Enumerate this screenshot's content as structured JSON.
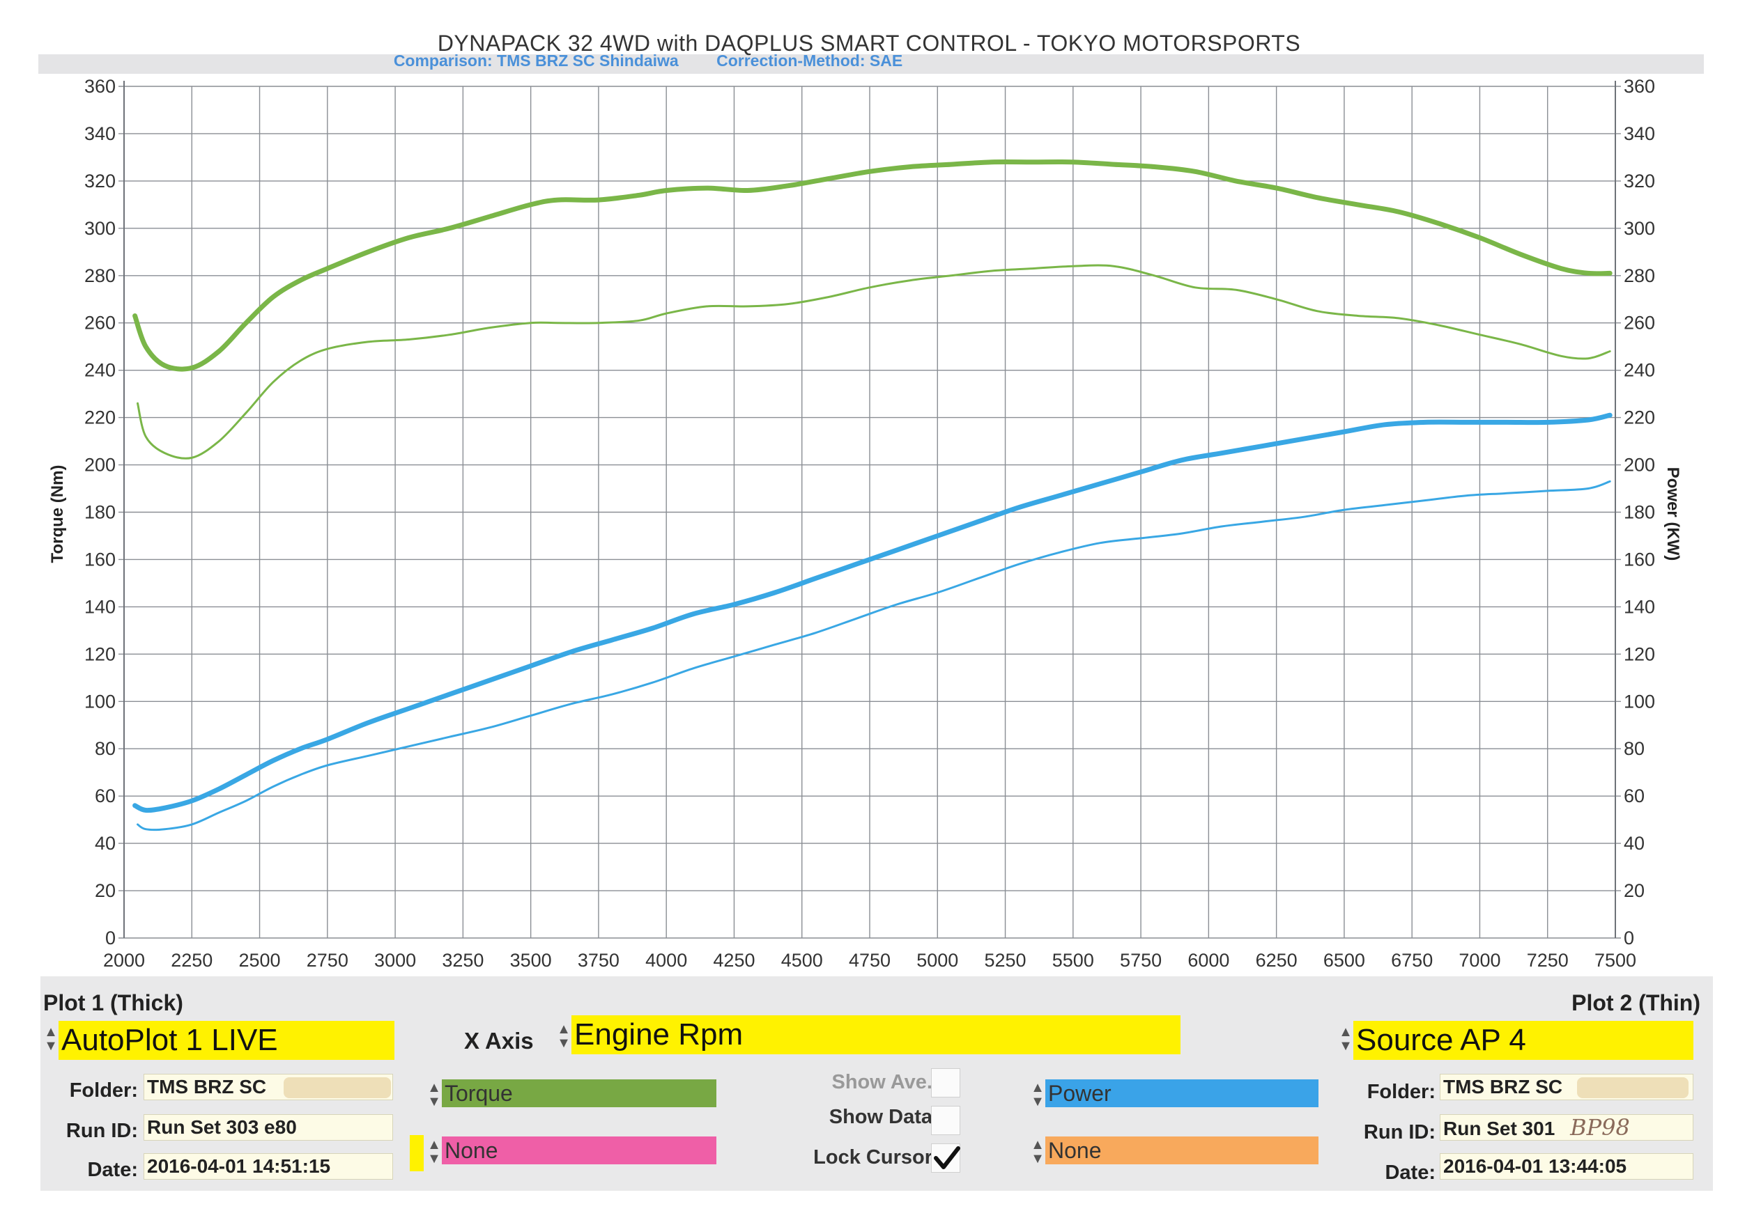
{
  "chart_data": {
    "type": "line",
    "title": "DYNAPACK 32 4WD with DAQPLUS SMART CONTROL - TOKYO MOTORSPORTS",
    "subtitle_comparison": "Comparison: TMS BRZ SC Shindaiwa",
    "subtitle_correction": "Correction-Method: SAE",
    "xlabel": "",
    "ylabel_left": "Torque (Nm)",
    "ylabel_right": "Power (KW)",
    "xlim": [
      2000,
      7500
    ],
    "ylim": [
      0,
      360
    ],
    "x_ticks": [
      "2000",
      "2250",
      "2500",
      "2750",
      "3000",
      "3250",
      "3500",
      "3750",
      "4000",
      "4250",
      "4500",
      "4750",
      "5000",
      "5250",
      "5500",
      "5750",
      "6000",
      "6250",
      "6500",
      "6750",
      "7000",
      "7250",
      "7500"
    ],
    "y_ticks": [
      "0",
      "20",
      "40",
      "60",
      "80",
      "100",
      "120",
      "140",
      "160",
      "180",
      "200",
      "220",
      "240",
      "260",
      "280",
      "300",
      "320",
      "340",
      "360"
    ],
    "grid": true,
    "colors": {
      "torque": "#7ab648",
      "power": "#39a7e4"
    },
    "series": [
      {
        "key": "torque_thick",
        "color": "#7ab648",
        "weight": "thick",
        "x": [
          2040,
          2080,
          2150,
          2250,
          2350,
          2450,
          2550,
          2650,
          2750,
          2900,
          3050,
          3200,
          3350,
          3500,
          3600,
          3750,
          3900,
          4000,
          4150,
          4300,
          4450,
          4600,
          4750,
          4900,
          5050,
          5200,
          5350,
          5500,
          5650,
          5800,
          5950,
          6100,
          6250,
          6400,
          6550,
          6700,
          6850,
          7000,
          7150,
          7300,
          7400,
          7480
        ],
        "y": [
          263,
          250,
          242,
          241,
          248,
          260,
          271,
          278,
          283,
          290,
          296,
          300,
          305,
          310,
          312,
          312,
          314,
          316,
          317,
          316,
          318,
          321,
          324,
          326,
          327,
          328,
          328,
          328,
          327,
          326,
          324,
          320,
          317,
          313,
          310,
          307,
          302,
          296,
          289,
          283,
          281,
          281
        ]
      },
      {
        "key": "torque_thin",
        "color": "#7ab648",
        "weight": "thin",
        "x": [
          2050,
          2080,
          2150,
          2250,
          2350,
          2450,
          2550,
          2650,
          2750,
          2900,
          3050,
          3200,
          3350,
          3500,
          3600,
          3750,
          3900,
          4000,
          4150,
          4300,
          4450,
          4600,
          4750,
          4900,
          5050,
          5200,
          5350,
          5500,
          5650,
          5800,
          5950,
          6100,
          6250,
          6400,
          6550,
          6700,
          6850,
          7000,
          7150,
          7300,
          7400,
          7480
        ],
        "y": [
          226,
          212,
          205,
          203,
          210,
          222,
          235,
          244,
          249,
          252,
          253,
          255,
          258,
          260,
          260,
          260,
          261,
          264,
          267,
          267,
          268,
          271,
          275,
          278,
          280,
          282,
          283,
          284,
          284,
          280,
          275,
          274,
          270,
          265,
          263,
          262,
          259,
          255,
          251,
          246,
          245,
          248
        ]
      },
      {
        "key": "power_thick",
        "color": "#39a7e4",
        "weight": "thick",
        "x": [
          2040,
          2080,
          2150,
          2250,
          2350,
          2450,
          2550,
          2650,
          2750,
          2900,
          3050,
          3200,
          3350,
          3500,
          3650,
          3800,
          3950,
          4100,
          4250,
          4400,
          4550,
          4700,
          4850,
          5000,
          5150,
          5300,
          5450,
          5600,
          5750,
          5900,
          6050,
          6200,
          6350,
          6500,
          6650,
          6800,
          6950,
          7100,
          7250,
          7400,
          7480
        ],
        "y": [
          56,
          54,
          55,
          58,
          63,
          69,
          75,
          80,
          84,
          91,
          97,
          103,
          109,
          115,
          121,
          126,
          131,
          137,
          141,
          146,
          152,
          158,
          164,
          170,
          176,
          182,
          187,
          192,
          197,
          202,
          205,
          208,
          211,
          214,
          217,
          218,
          218,
          218,
          218,
          219,
          221
        ]
      },
      {
        "key": "power_thin",
        "color": "#39a7e4",
        "weight": "thin",
        "x": [
          2050,
          2080,
          2150,
          2250,
          2350,
          2450,
          2550,
          2650,
          2750,
          2900,
          3050,
          3200,
          3350,
          3500,
          3650,
          3800,
          3950,
          4100,
          4250,
          4400,
          4550,
          4700,
          4850,
          5000,
          5150,
          5300,
          5450,
          5600,
          5750,
          5900,
          6050,
          6200,
          6350,
          6500,
          6650,
          6800,
          6950,
          7100,
          7250,
          7400,
          7480
        ],
        "y": [
          48,
          46,
          46,
          48,
          53,
          58,
          64,
          69,
          73,
          77,
          81,
          85,
          89,
          94,
          99,
          103,
          108,
          114,
          119,
          124,
          129,
          135,
          141,
          146,
          152,
          158,
          163,
          167,
          169,
          171,
          174,
          176,
          178,
          181,
          183,
          185,
          187,
          188,
          189,
          190,
          193
        ]
      }
    ]
  },
  "panel": {
    "plot1_header": "Plot 1 (Thick)",
    "plot2_header": "Plot 2 (Thin)",
    "plot1_select": "AutoPlot 1 LIVE",
    "xaxis_label": "X Axis",
    "xaxis_select": "Engine Rpm",
    "plot2_select": "Source AP 4",
    "folder_label": "Folder:",
    "runid_label": "Run ID:",
    "date_label": "Date:",
    "plot1_folder": "TMS BRZ SC",
    "plot1_runid": "Run Set 303 e80",
    "plot1_date": "2016-04-01 14:51:15",
    "plot2_folder": "TMS BRZ SC",
    "plot2_runid": "Run Set 301",
    "plot2_runid_note": "BP98",
    "plot2_date": "2016-04-01 13:44:05",
    "channel_a": "Torque",
    "channel_b": "None",
    "channel_c": "Power",
    "channel_d": "None",
    "show_ave_label": "Show Ave.",
    "show_data_label": "Show Data",
    "lock_cursor_label": "Lock Cursor",
    "lock_cursor_checked": true,
    "colors": {
      "torque": "#78a844",
      "none_left": "#ef5fa7",
      "power": "#3aa3e8",
      "none_right": "#f8a95c",
      "yellow": "#fff200"
    }
  }
}
